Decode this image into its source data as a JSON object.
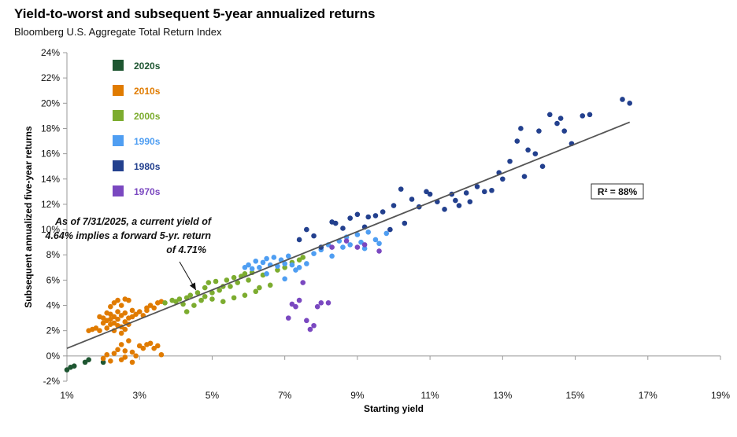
{
  "title": "Yield-to-worst and subsequent 5-year annualized returns",
  "subtitle": "Bloomberg U.S. Aggregate Total Return Index",
  "chart_data": {
    "type": "scatter",
    "xlabel": "Starting yield",
    "ylabel": "Subsequent annualized five-year returns",
    "xlim": [
      1,
      19
    ],
    "ylim": [
      -2,
      24
    ],
    "x_ticks": [
      "1%",
      "3%",
      "5%",
      "7%",
      "9%",
      "11%",
      "13%",
      "15%",
      "17%",
      "19%"
    ],
    "y_ticks": [
      "-2%",
      "0%",
      "2%",
      "4%",
      "6%",
      "8%",
      "10%",
      "12%",
      "14%",
      "16%",
      "18%",
      "20%",
      "22%",
      "24%"
    ],
    "grid": false,
    "legend_position": "top-left",
    "trendline": {
      "from": [
        1.0,
        0.6
      ],
      "to": [
        16.5,
        18.5
      ],
      "color": "#555555"
    },
    "r_squared_label": "R² = 88%",
    "annotation": {
      "lines": [
        "As of 7/31/2025, a current yield of",
        "4.64% implies a forward 5-yr. return",
        "of 4.71%"
      ],
      "point": [
        4.64,
        4.71
      ]
    },
    "series": [
      {
        "name": "2020s",
        "color": "#1e5631",
        "points": [
          [
            1.0,
            -1.1
          ],
          [
            1.1,
            -0.9
          ],
          [
            1.2,
            -0.8
          ],
          [
            1.5,
            -0.5
          ],
          [
            1.6,
            -0.3
          ],
          [
            2.0,
            -0.5
          ]
        ]
      },
      {
        "name": "2010s",
        "color": "#e07b00",
        "points": [
          [
            1.6,
            2.0
          ],
          [
            1.7,
            2.1
          ],
          [
            1.8,
            2.2
          ],
          [
            1.9,
            3.1
          ],
          [
            1.9,
            2.0
          ],
          [
            2.0,
            3.0
          ],
          [
            2.0,
            2.6
          ],
          [
            2.1,
            2.2
          ],
          [
            2.1,
            3.4
          ],
          [
            2.1,
            2.8
          ],
          [
            2.2,
            3.3
          ],
          [
            2.2,
            2.5
          ],
          [
            2.2,
            2.9
          ],
          [
            2.2,
            3.9
          ],
          [
            2.3,
            4.2
          ],
          [
            2.3,
            3.1
          ],
          [
            2.3,
            2.6
          ],
          [
            2.3,
            2.0
          ],
          [
            2.4,
            2.4
          ],
          [
            2.4,
            3.5
          ],
          [
            2.4,
            4.4
          ],
          [
            2.4,
            2.9
          ],
          [
            2.5,
            2.3
          ],
          [
            2.5,
            3.2
          ],
          [
            2.5,
            4.0
          ],
          [
            2.5,
            1.8
          ],
          [
            2.6,
            4.5
          ],
          [
            2.6,
            3.4
          ],
          [
            2.6,
            2.1
          ],
          [
            2.6,
            2.7
          ],
          [
            2.7,
            4.4
          ],
          [
            2.7,
            3.0
          ],
          [
            2.7,
            2.5
          ],
          [
            2.8,
            3.1
          ],
          [
            2.8,
            3.6
          ],
          [
            2.9,
            3.3
          ],
          [
            3.0,
            3.5
          ],
          [
            3.1,
            3.2
          ],
          [
            3.2,
            3.8
          ],
          [
            3.2,
            3.6
          ],
          [
            3.3,
            4.0
          ],
          [
            3.4,
            3.8
          ],
          [
            3.5,
            4.2
          ],
          [
            3.6,
            4.3
          ],
          [
            2.0,
            -0.2
          ],
          [
            2.1,
            0.1
          ],
          [
            2.2,
            -0.4
          ],
          [
            2.3,
            0.2
          ],
          [
            2.4,
            0.5
          ],
          [
            2.5,
            0.9
          ],
          [
            2.5,
            -0.3
          ],
          [
            2.6,
            0.4
          ],
          [
            2.6,
            -0.1
          ],
          [
            2.7,
            1.2
          ],
          [
            2.8,
            -0.5
          ],
          [
            2.8,
            0.3
          ],
          [
            2.9,
            0.0
          ],
          [
            3.0,
            0.8
          ],
          [
            3.1,
            0.6
          ],
          [
            3.2,
            0.9
          ],
          [
            3.3,
            1.0
          ],
          [
            3.4,
            0.6
          ],
          [
            3.5,
            0.8
          ],
          [
            3.6,
            0.1
          ]
        ]
      },
      {
        "name": "2000s",
        "color": "#7cac2f",
        "points": [
          [
            3.7,
            4.2
          ],
          [
            3.9,
            4.4
          ],
          [
            4.0,
            4.3
          ],
          [
            4.1,
            4.5
          ],
          [
            4.2,
            4.1
          ],
          [
            4.3,
            4.6
          ],
          [
            4.3,
            3.5
          ],
          [
            4.4,
            4.8
          ],
          [
            4.5,
            4.0
          ],
          [
            4.6,
            5.0
          ],
          [
            4.7,
            4.4
          ],
          [
            4.8,
            5.4
          ],
          [
            4.8,
            4.7
          ],
          [
            4.9,
            5.8
          ],
          [
            5.0,
            5.0
          ],
          [
            5.0,
            4.5
          ],
          [
            5.1,
            5.9
          ],
          [
            5.2,
            5.2
          ],
          [
            5.3,
            5.5
          ],
          [
            5.3,
            4.3
          ],
          [
            5.4,
            6.0
          ],
          [
            5.5,
            5.5
          ],
          [
            5.6,
            6.2
          ],
          [
            5.6,
            4.6
          ],
          [
            5.7,
            5.8
          ],
          [
            5.8,
            6.3
          ],
          [
            5.9,
            6.5
          ],
          [
            5.9,
            4.8
          ],
          [
            6.0,
            6.0
          ],
          [
            6.1,
            6.6
          ],
          [
            6.2,
            5.1
          ],
          [
            6.3,
            5.4
          ],
          [
            6.4,
            6.4
          ],
          [
            6.6,
            5.6
          ],
          [
            6.8,
            6.8
          ],
          [
            7.0,
            7.0
          ],
          [
            7.2,
            7.4
          ],
          [
            7.4,
            7.6
          ],
          [
            7.5,
            7.8
          ]
        ]
      },
      {
        "name": "1990s",
        "color": "#4f9ef2",
        "points": [
          [
            5.9,
            7.0
          ],
          [
            6.0,
            7.2
          ],
          [
            6.1,
            6.9
          ],
          [
            6.2,
            7.5
          ],
          [
            6.3,
            7.0
          ],
          [
            6.4,
            7.4
          ],
          [
            6.5,
            7.7
          ],
          [
            6.5,
            6.5
          ],
          [
            6.6,
            7.2
          ],
          [
            6.7,
            7.8
          ],
          [
            6.8,
            7.1
          ],
          [
            6.9,
            7.6
          ],
          [
            7.0,
            7.3
          ],
          [
            7.0,
            6.1
          ],
          [
            7.1,
            7.9
          ],
          [
            7.2,
            7.2
          ],
          [
            7.3,
            6.8
          ],
          [
            7.4,
            7.0
          ],
          [
            7.6,
            7.3
          ],
          [
            7.8,
            8.1
          ],
          [
            8.0,
            8.4
          ],
          [
            8.2,
            8.8
          ],
          [
            8.3,
            7.9
          ],
          [
            8.5,
            9.1
          ],
          [
            8.6,
            8.6
          ],
          [
            8.7,
            9.4
          ],
          [
            8.8,
            8.8
          ],
          [
            9.0,
            9.6
          ],
          [
            9.1,
            9.0
          ],
          [
            9.2,
            8.5
          ],
          [
            9.3,
            9.8
          ],
          [
            9.5,
            9.2
          ],
          [
            9.6,
            8.9
          ],
          [
            9.8,
            9.7
          ]
        ]
      },
      {
        "name": "1980s",
        "color": "#23408e",
        "points": [
          [
            7.4,
            9.2
          ],
          [
            7.6,
            10.0
          ],
          [
            7.8,
            9.5
          ],
          [
            8.0,
            8.6
          ],
          [
            8.3,
            10.6
          ],
          [
            8.4,
            10.5
          ],
          [
            8.6,
            10.1
          ],
          [
            8.8,
            10.9
          ],
          [
            9.0,
            11.2
          ],
          [
            9.2,
            10.2
          ],
          [
            9.3,
            11.0
          ],
          [
            9.5,
            11.1
          ],
          [
            9.7,
            11.4
          ],
          [
            9.9,
            10.0
          ],
          [
            10.0,
            11.9
          ],
          [
            10.2,
            13.2
          ],
          [
            10.3,
            10.5
          ],
          [
            10.5,
            12.4
          ],
          [
            10.7,
            11.8
          ],
          [
            10.9,
            13.0
          ],
          [
            11.0,
            12.8
          ],
          [
            11.2,
            12.2
          ],
          [
            11.4,
            11.6
          ],
          [
            11.6,
            12.8
          ],
          [
            11.7,
            12.3
          ],
          [
            11.8,
            11.9
          ],
          [
            12.0,
            12.9
          ],
          [
            12.1,
            12.2
          ],
          [
            12.3,
            13.4
          ],
          [
            12.5,
            13.0
          ],
          [
            12.7,
            13.1
          ],
          [
            12.9,
            14.5
          ],
          [
            13.0,
            14.0
          ],
          [
            13.2,
            15.4
          ],
          [
            13.4,
            17.0
          ],
          [
            13.5,
            18.0
          ],
          [
            13.6,
            14.2
          ],
          [
            13.7,
            16.3
          ],
          [
            13.9,
            16.0
          ],
          [
            14.0,
            17.8
          ],
          [
            14.1,
            15.0
          ],
          [
            14.3,
            19.1
          ],
          [
            14.5,
            18.4
          ],
          [
            14.6,
            18.8
          ],
          [
            14.7,
            17.8
          ],
          [
            14.9,
            16.8
          ],
          [
            15.2,
            19.0
          ],
          [
            15.4,
            19.1
          ],
          [
            16.3,
            20.3
          ],
          [
            16.5,
            20.0
          ]
        ]
      },
      {
        "name": "1970s",
        "color": "#7a48c0",
        "points": [
          [
            7.1,
            3.0
          ],
          [
            7.2,
            4.1
          ],
          [
            7.3,
            3.9
          ],
          [
            7.4,
            4.4
          ],
          [
            7.5,
            5.8
          ],
          [
            7.6,
            2.8
          ],
          [
            7.7,
            2.1
          ],
          [
            7.8,
            2.4
          ],
          [
            7.9,
            3.9
          ],
          [
            8.0,
            4.2
          ],
          [
            8.2,
            4.2
          ],
          [
            8.3,
            8.6
          ],
          [
            8.7,
            9.1
          ],
          [
            9.0,
            8.6
          ],
          [
            9.2,
            8.8
          ],
          [
            9.6,
            8.3
          ]
        ]
      }
    ]
  }
}
